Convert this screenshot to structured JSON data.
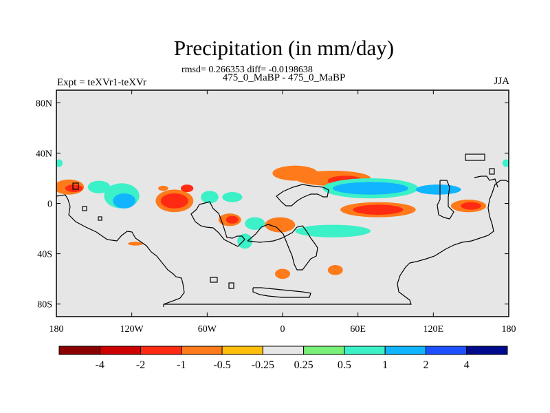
{
  "header": {
    "title": "Precipitation (in mm/day)",
    "subtitle": "rmsd= 0.266353 diff= -0.0198638",
    "left_label": "Expt = teXVr1-teXVr",
    "center_label": "475_0_MaBP - 475_0_MaBP",
    "right_label": "JJA"
  },
  "chart_data": {
    "type": "heatmap",
    "title": "Precipitation (in mm/day)",
    "projection": "cylindrical-equidistant",
    "xlim": [
      -180,
      180
    ],
    "ylim": [
      -90,
      90
    ],
    "x_ticks": [
      {
        "value": -180,
        "label": "180"
      },
      {
        "value": -120,
        "label": "120W"
      },
      {
        "value": -60,
        "label": "60W"
      },
      {
        "value": 0,
        "label": "0"
      },
      {
        "value": 60,
        "label": "60E"
      },
      {
        "value": 120,
        "label": "120E"
      },
      {
        "value": 180,
        "label": "180"
      }
    ],
    "y_ticks": [
      {
        "value": 80,
        "label": "80N"
      },
      {
        "value": 40,
        "label": "40N"
      },
      {
        "value": 0,
        "label": "0"
      },
      {
        "value": -40,
        "label": "40S"
      },
      {
        "value": -80,
        "label": "80S"
      }
    ],
    "background_color": "#e6e6e6",
    "colorbar": {
      "levels": [
        "-4",
        "-2",
        "-1",
        "-0.5",
        "-0.25",
        "0.25",
        "0.5",
        "1",
        "2",
        "4"
      ],
      "colors": [
        "#8b0000",
        "#cd0000",
        "#ff2a12",
        "#ff7a1a",
        "#ffbe0a",
        "#e6e6e6",
        "#78f078",
        "#3cf0c8",
        "#10b4ff",
        "#1e50ff",
        "#000a8c"
      ]
    },
    "anomaly_regions": [
      {
        "lon": -170,
        "lat": 13,
        "rx": 12,
        "ry": 6,
        "level": "-0.5"
      },
      {
        "lon": -166,
        "lat": 12,
        "rx": 7,
        "ry": 3,
        "level": "-1"
      },
      {
        "lon": -146,
        "lat": 13,
        "rx": 9,
        "ry": 5,
        "level": "0.5"
      },
      {
        "lon": -128,
        "lat": 6,
        "rx": 14,
        "ry": 10,
        "level": "0.5"
      },
      {
        "lon": -126,
        "lat": 2,
        "rx": 9,
        "ry": 6,
        "level": "1"
      },
      {
        "lon": -95,
        "lat": 12,
        "rx": 4,
        "ry": 2,
        "level": "-0.5"
      },
      {
        "lon": -86,
        "lat": 2,
        "rx": 15,
        "ry": 9,
        "level": "-0.5"
      },
      {
        "lon": -86,
        "lat": 2,
        "rx": 11,
        "ry": 6,
        "level": "-1"
      },
      {
        "lon": -76,
        "lat": 12,
        "rx": 5,
        "ry": 3,
        "level": "-1"
      },
      {
        "lon": -58,
        "lat": 5,
        "rx": 7,
        "ry": 5,
        "level": "0.5"
      },
      {
        "lon": -40,
        "lat": 5,
        "rx": 8,
        "ry": 4,
        "level": "0.5"
      },
      {
        "lon": -42,
        "lat": -13,
        "rx": 9,
        "ry": 5,
        "level": "-0.5"
      },
      {
        "lon": -40,
        "lat": -13,
        "rx": 5,
        "ry": 3,
        "level": "-1"
      },
      {
        "lon": -22,
        "lat": -16,
        "rx": 8,
        "ry": 5,
        "level": "0.5"
      },
      {
        "lon": -2,
        "lat": -17,
        "rx": 12,
        "ry": 6,
        "level": "-0.5"
      },
      {
        "lon": -30,
        "lat": -30,
        "rx": 6,
        "ry": 6,
        "level": "0.5"
      },
      {
        "lon": 10,
        "lat": 24,
        "rx": 18,
        "ry": 6,
        "level": "-0.5"
      },
      {
        "lon": 40,
        "lat": 20,
        "rx": 30,
        "ry": 6,
        "level": "-0.5"
      },
      {
        "lon": 50,
        "lat": 18,
        "rx": 14,
        "ry": 4,
        "level": "-1"
      },
      {
        "lon": 70,
        "lat": 12,
        "rx": 38,
        "ry": 8,
        "level": "0.5"
      },
      {
        "lon": 70,
        "lat": 12,
        "rx": 30,
        "ry": 5,
        "level": "1"
      },
      {
        "lon": 124,
        "lat": 11,
        "rx": 18,
        "ry": 4,
        "level": "1"
      },
      {
        "lon": 76,
        "lat": -5,
        "rx": 30,
        "ry": 6,
        "level": "-0.5"
      },
      {
        "lon": 76,
        "lat": -5,
        "rx": 20,
        "ry": 4,
        "level": "-1"
      },
      {
        "lon": 148,
        "lat": -2,
        "rx": 14,
        "ry": 5,
        "level": "-0.5"
      },
      {
        "lon": 150,
        "lat": -2,
        "rx": 8,
        "ry": 3,
        "level": "-1"
      },
      {
        "lon": 40,
        "lat": -22,
        "rx": 30,
        "ry": 5,
        "level": "0.5"
      },
      {
        "lon": 0,
        "lat": -56,
        "rx": 6,
        "ry": 4,
        "level": "-0.5"
      },
      {
        "lon": 42,
        "lat": -53,
        "rx": 6,
        "ry": 4,
        "level": "-0.5"
      },
      {
        "lon": -117,
        "lat": -32,
        "rx": 6,
        "ry": 1.5,
        "level": "-0.5"
      },
      {
        "lon": -178,
        "lat": 32,
        "rx": 3,
        "ry": 3,
        "level": "0.5"
      },
      {
        "lon": 178,
        "lat": 32,
        "rx": 3,
        "ry": 3,
        "level": "0.5"
      }
    ]
  }
}
